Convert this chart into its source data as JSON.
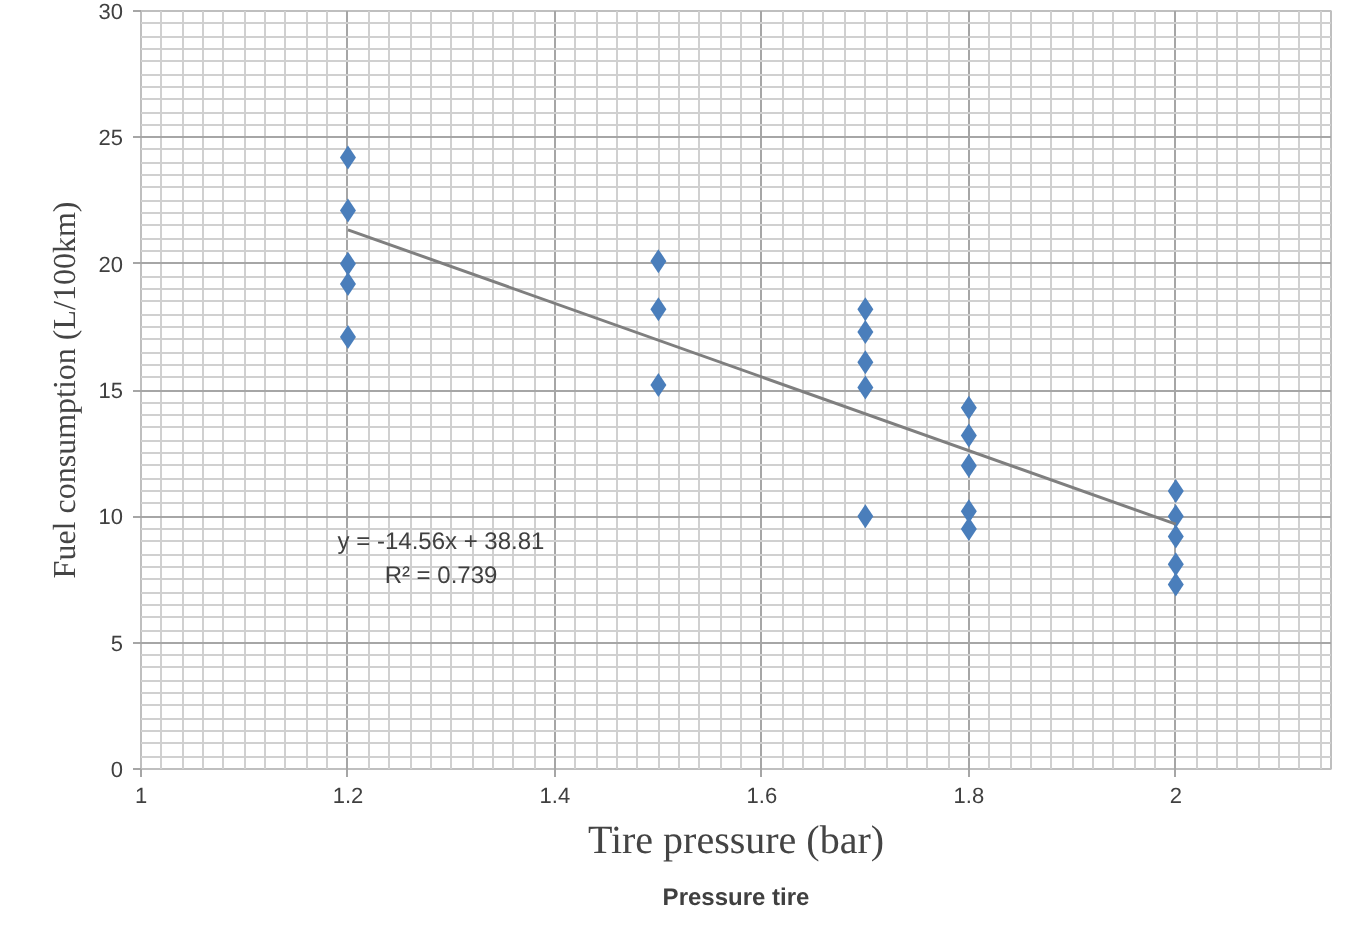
{
  "chart_data": {
    "type": "scatter",
    "xlabel": "Tire pressure (bar)",
    "ylabel": "Fuel consumption (L/100km)",
    "annotations": [
      "Pressure tire",
      "y = -14.56x + 38.81\nR² = 0.739"
    ],
    "marker": "diamond",
    "grid": true,
    "xlim": [
      1,
      2.15
    ],
    "ylim": [
      0,
      30
    ],
    "xticks": [
      1,
      1.2,
      1.4,
      1.6,
      1.8,
      2
    ],
    "yticks": [
      0,
      5,
      10,
      15,
      20,
      25,
      30
    ],
    "series": [
      {
        "color": "#4a7ebb",
        "x": [
          1.2,
          1.2,
          1.2,
          1.2,
          1.2,
          1.5,
          1.5,
          1.5,
          1.7,
          1.7,
          1.7,
          1.7,
          1.7,
          1.8,
          1.8,
          1.8,
          1.8,
          1.8,
          2,
          2,
          2,
          2,
          2
        ],
        "values": [
          24.2,
          22.1,
          20.0,
          19.2,
          17.1,
          20.1,
          18.2,
          15.2,
          18.2,
          17.3,
          16.1,
          15.1,
          10.0,
          14.3,
          13.2,
          12.0,
          10.2,
          9.5,
          11.0,
          10.0,
          9.2,
          8.1,
          7.3
        ]
      },
      {
        "type": "line",
        "marker": "none",
        "color": "#7f7f7f",
        "x": [
          1.2,
          2
        ],
        "values": [
          21.34,
          9.69
        ]
      }
    ]
  }
}
